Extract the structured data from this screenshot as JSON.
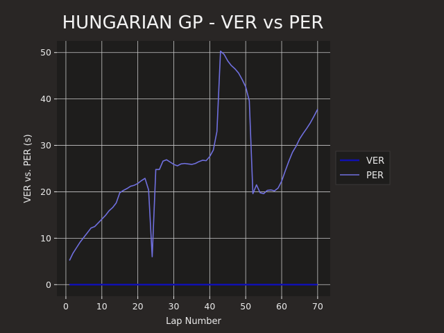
{
  "chart_data": {
    "type": "line",
    "title": "HUNGARIAN GP - VER vs PER",
    "xlabel": "Lap Number",
    "ylabel": "VER vs. PER (s)",
    "xlim": [
      -2.5,
      73.5
    ],
    "ylim": [
      -2.5,
      52.5
    ],
    "xticks": [
      0,
      10,
      20,
      30,
      40,
      50,
      60,
      70
    ],
    "yticks": [
      0,
      10,
      20,
      30,
      40,
      50
    ],
    "grid": true,
    "legend_position": "right",
    "series": [
      {
        "name": "VER",
        "color": "#1010b0",
        "x": [
          1,
          70
        ],
        "y": [
          0,
          0
        ]
      },
      {
        "name": "PER",
        "color": "#7070e0",
        "x": [
          1,
          2,
          3,
          4,
          5,
          6,
          7,
          8,
          9,
          10,
          11,
          12,
          13,
          14,
          15,
          16,
          17,
          18,
          19,
          20,
          21,
          22,
          23,
          24,
          25,
          26,
          27,
          28,
          29,
          30,
          31,
          32,
          33,
          34,
          35,
          36,
          37,
          38,
          39,
          40,
          41,
          42,
          43,
          44,
          45,
          46,
          47,
          48,
          49,
          50,
          51,
          52,
          53,
          54,
          55,
          56,
          57,
          58,
          59,
          60,
          61,
          62,
          63,
          64,
          65,
          66,
          67,
          68,
          69,
          70
        ],
        "y": [
          5.2,
          6.8,
          8.0,
          9.2,
          10.2,
          11.2,
          12.2,
          12.5,
          13.3,
          14.1,
          14.9,
          15.9,
          16.6,
          17.6,
          19.8,
          20.3,
          20.7,
          21.2,
          21.4,
          21.8,
          22.4,
          22.9,
          20.4,
          6.0,
          24.8,
          24.8,
          26.6,
          26.9,
          26.4,
          25.9,
          25.6,
          26.0,
          26.1,
          26.0,
          25.9,
          26.1,
          26.5,
          26.8,
          26.7,
          27.6,
          29.0,
          33.0,
          50.3,
          49.6,
          48.2,
          47.2,
          46.5,
          45.6,
          44.2,
          42.6,
          39.6,
          19.6,
          21.5,
          19.8,
          19.6,
          20.3,
          20.4,
          20.2,
          20.8,
          22.3,
          24.5,
          26.6,
          28.5,
          29.8,
          31.4,
          32.6,
          33.7,
          34.9,
          36.3,
          37.8
        ]
      }
    ]
  }
}
